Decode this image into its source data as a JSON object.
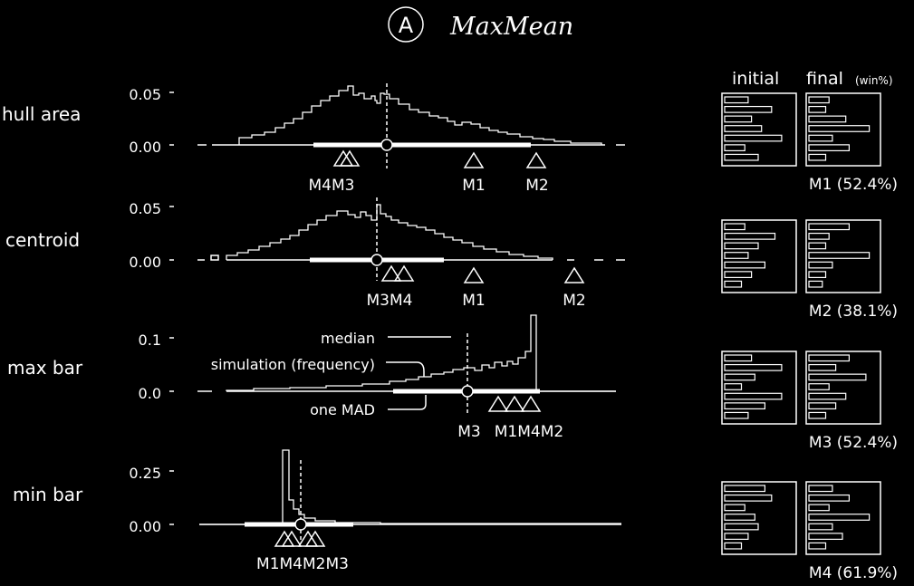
{
  "title": {
    "badge": "A",
    "text": "MaxMean"
  },
  "columns": {
    "initial": "initial",
    "final": "final",
    "final_sub": "(win%)"
  },
  "annotations": {
    "median": "median",
    "simulation": "simulation (frequency)",
    "one_mad": "one MAD"
  },
  "chart_data": [
    {
      "type": "area",
      "title": "hull area",
      "yticks": [
        "0.05",
        "0.00"
      ],
      "ylim": [
        0,
        0.06
      ],
      "median": 0.0,
      "markers": [
        {
          "label": "M4M3"
        },
        {
          "label": "M1"
        },
        {
          "label": "M2"
        }
      ],
      "bars": [
        {
          "label": "M1 (52.4%)"
        }
      ]
    },
    {
      "type": "area",
      "title": "centroid",
      "yticks": [
        "0.05",
        "0.00"
      ],
      "ylim": [
        0,
        0.06
      ],
      "markers": [
        {
          "label": "M3M4"
        },
        {
          "label": "M1"
        },
        {
          "label": "M2"
        }
      ],
      "bars": [
        {
          "label": "M2 (38.1%)"
        }
      ]
    },
    {
      "type": "area",
      "title": "max bar",
      "yticks": [
        "0.1",
        "0.0"
      ],
      "ylim": [
        0,
        0.13
      ],
      "markers": [
        {
          "label": "M3"
        },
        {
          "label": "M1M4M2"
        }
      ],
      "bars": [
        {
          "label": "M3 (52.4%)"
        }
      ]
    },
    {
      "type": "area",
      "title": "min bar",
      "yticks": [
        "0.25",
        "0.00"
      ],
      "ylim": [
        0,
        0.32
      ],
      "markers": [
        {
          "label": "M1M4M2M3"
        }
      ],
      "bars": [
        {
          "label": "M4 (61.9%)"
        }
      ]
    }
  ],
  "mini_charts": [
    {
      "caption": "M1 (52.4%)",
      "initial": [
        0.35,
        0.7,
        0.4,
        0.55,
        0.85,
        0.3,
        0.5
      ],
      "final": [
        0.3,
        0.25,
        0.55,
        0.9,
        0.35,
        0.6,
        0.25
      ]
    },
    {
      "caption": "M2 (38.1%)",
      "initial": [
        0.3,
        0.75,
        0.5,
        0.35,
        0.6,
        0.4,
        0.25
      ],
      "final": [
        0.6,
        0.3,
        0.25,
        0.9,
        0.35,
        0.25,
        0.2
      ]
    },
    {
      "caption": "M3 (52.4%)",
      "initial": [
        0.4,
        0.85,
        0.45,
        0.25,
        0.85,
        0.6,
        0.35
      ],
      "final": [
        0.6,
        0.4,
        0.85,
        0.3,
        0.55,
        0.4,
        0.25
      ]
    },
    {
      "caption": "M4 (61.9%)",
      "initial": [
        0.6,
        0.7,
        0.3,
        0.45,
        0.5,
        0.35,
        0.25
      ],
      "final": [
        0.35,
        0.6,
        0.3,
        0.9,
        0.35,
        0.5,
        0.25
      ]
    }
  ]
}
